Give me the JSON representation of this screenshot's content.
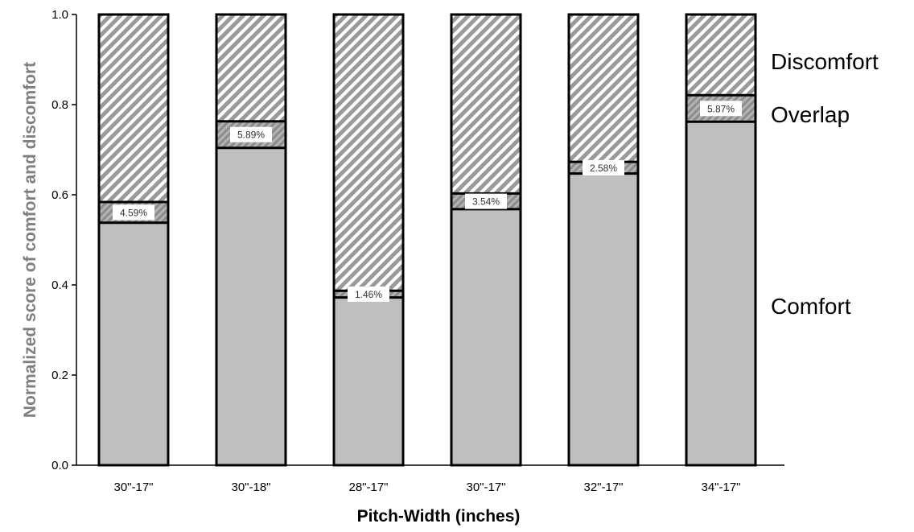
{
  "chart_data": {
    "type": "bar",
    "stacked": true,
    "xlabel": "Pitch-Width (inches)",
    "ylabel": "Normalized score of comfort and discomfort",
    "ylim": [
      0,
      1.0
    ],
    "yticks": [
      "0.0",
      "0.2",
      "0.4",
      "0.6",
      "0.8",
      "1.0"
    ],
    "categories": [
      "30\"-17\"",
      "30\"-18\"",
      "28\"-17\"",
      "30\"-17\"",
      "32\"-17\"",
      "34\"-17\""
    ],
    "series": [
      {
        "name": "Comfort",
        "values": [
          0.538,
          0.704,
          0.372,
          0.568,
          0.647,
          0.762
        ]
      },
      {
        "name": "Overlap",
        "values": [
          0.046,
          0.059,
          0.015,
          0.035,
          0.026,
          0.059
        ]
      },
      {
        "name": "Discomfort",
        "values": [
          0.416,
          0.237,
          0.613,
          0.397,
          0.327,
          0.179
        ]
      }
    ],
    "overlap_labels": [
      "4.59%",
      "5.89%",
      "1.46%",
      "3.54%",
      "2.58%",
      "5.87%"
    ],
    "legend": [
      "Discomfort",
      "Overlap",
      "Comfort"
    ],
    "legend_position": "right, beside bars",
    "grid": false,
    "colors": {
      "comfort": "#bfbfbf",
      "overlap": "#a6a6a6",
      "discomfort_hatch": "#9a9a9a",
      "outline": "#000000",
      "axis_title": "#7f7f7f"
    }
  }
}
